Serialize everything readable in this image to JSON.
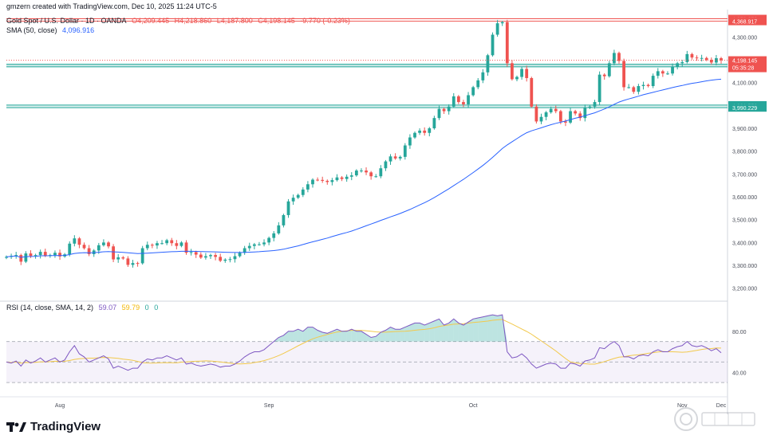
{
  "header": {
    "credit": "gmzern created with TradingView.com, Dec 10, 2025 11:24 UTC-5",
    "symbol": "Gold Spot / U.S. Dollar · 1D · OANDA",
    "open": "O4,209.445",
    "high": "H4,218.860",
    "low": "L4,187.800",
    "close": "C4,198.145",
    "change": "-9.770 (-0.23%)",
    "sma_label": "SMA (50, close)",
    "sma_value": "4,096.916"
  },
  "rsi_header": {
    "label": "RSI (14, close, SMA, 14, 2)",
    "rsi": "59.07",
    "rsi_sma": "59.79",
    "z1": "0",
    "z2": "0"
  },
  "currency": "USD",
  "branding": {
    "name": "TradingView"
  },
  "colors": {
    "up": "#26a69a",
    "down": "#ef5350",
    "sma": "#2962ff",
    "rsi": "#7e57c2",
    "rsi_sma": "#f2c94c"
  },
  "chart_data": [
    {
      "type": "candlestick",
      "title": "Gold Spot / U.S. Dollar · 1D · OANDA",
      "ylim": [
        3150,
        4420
      ],
      "y_ticks": [
        3200,
        3300,
        3400,
        3500,
        3600,
        3700,
        3800,
        3900,
        4000,
        4100,
        4200,
        4300
      ],
      "y_tick_labels": [
        "3,200.000",
        "3,300.000",
        "3,400.000",
        "3,500.000",
        "3,600.000",
        "3,700.000",
        "3,800.000",
        "3,900.000",
        "4,000.000",
        "4,100.000",
        "4,200.000",
        "4,300.000"
      ],
      "x_labels": [
        "Aug",
        "Sep",
        "Oct",
        "Nov",
        "Dec"
      ],
      "horizontal_levels": [
        {
          "value": 4379.672,
          "label": "4,379.672",
          "color": "#ef5350"
        },
        {
          "value": 4368.917,
          "label": "4,368.917",
          "color": "#ef5350"
        },
        {
          "value": 4180.688,
          "label": "4,180.688",
          "color": "#26a69a"
        },
        {
          "value": 4169.397,
          "label": "4,169.397",
          "color": "#26a69a"
        },
        {
          "value": 4001.552,
          "label": "4,001.552",
          "color": "#26a69a"
        },
        {
          "value": 3990.229,
          "label": "3,990.229",
          "color": "#26a69a"
        }
      ],
      "current_price": {
        "value": 4198.145,
        "label": "4,198.145",
        "countdown": "05:35:28"
      },
      "closes": [
        3337,
        3341,
        3345,
        3316,
        3352,
        3341,
        3345,
        3359,
        3342,
        3345,
        3355,
        3339,
        3348,
        3395,
        3418,
        3390,
        3375,
        3349,
        3365,
        3388,
        3400,
        3383,
        3326,
        3335,
        3330,
        3302,
        3310,
        3309,
        3375,
        3390,
        3387,
        3397,
        3397,
        3410,
        3397,
        3385,
        3400,
        3355,
        3358,
        3347,
        3334,
        3340,
        3345,
        3337,
        3320,
        3325,
        3327,
        3340,
        3355,
        3375,
        3385,
        3392,
        3392,
        3400,
        3420,
        3440,
        3475,
        3520,
        3580,
        3596,
        3608,
        3632,
        3655,
        3675,
        3674,
        3670,
        3665,
        3673,
        3685,
        3678,
        3688,
        3694,
        3715,
        3715,
        3707,
        3690,
        3690,
        3725,
        3755,
        3777,
        3768,
        3775,
        3825,
        3860,
        3880,
        3890,
        3880,
        3900,
        3945,
        3985,
        3975,
        3995,
        4040,
        4015,
        4005,
        4045,
        4080,
        4110,
        4145,
        4220,
        4310,
        4360,
        4365,
        4185,
        4115,
        4125,
        4160,
        4120,
        3995,
        3930,
        3950,
        3970,
        3985,
        3975,
        3930,
        3925,
        3975,
        3965,
        3945,
        3990,
        3995,
        4015,
        4135,
        4128,
        4185,
        4230,
        4195,
        4080,
        4080,
        4060,
        4085,
        4090,
        4085,
        4130,
        4150,
        4140,
        4140,
        4170,
        4185,
        4190,
        4225,
        4210,
        4208,
        4208,
        4200,
        4188,
        4207,
        4198
      ]
    },
    {
      "type": "line",
      "title": "RSI (14, close, SMA, 14, 2)",
      "ylim": [
        20,
        100
      ],
      "y_ticks": [
        40,
        60,
        80
      ],
      "y_tick_labels": [
        "40.00",
        "60.00",
        "80.00"
      ],
      "bands": {
        "upper": 70,
        "middle": 50,
        "lower": 30
      },
      "series": [
        {
          "name": "RSI",
          "values": [
            50,
            49,
            51,
            46,
            52,
            49,
            51,
            54,
            50,
            52,
            54,
            50,
            52,
            60,
            66,
            58,
            55,
            50,
            52,
            54,
            56,
            53,
            44,
            46,
            44,
            42,
            44,
            44,
            50,
            53,
            52,
            54,
            54,
            56,
            54,
            52,
            54,
            48,
            49,
            47,
            46,
            47,
            48,
            47,
            45,
            46,
            46,
            48,
            51,
            55,
            58,
            60,
            60,
            62,
            66,
            70,
            74,
            76,
            80,
            80,
            82,
            80,
            84,
            84,
            81,
            79,
            78,
            80,
            82,
            80,
            80,
            82,
            80,
            80,
            77,
            74,
            75,
            79,
            81,
            84,
            82,
            82,
            84,
            86,
            88,
            88,
            86,
            88,
            90,
            92,
            86,
            88,
            92,
            88,
            86,
            89,
            92,
            93,
            94,
            95,
            96,
            95,
            96,
            60,
            54,
            55,
            58,
            54,
            48,
            44,
            46,
            48,
            49,
            48,
            44,
            44,
            49,
            48,
            46,
            51,
            52,
            54,
            64,
            63,
            67,
            70,
            66,
            55,
            55,
            53,
            56,
            57,
            56,
            60,
            62,
            60,
            60,
            63,
            65,
            66,
            70,
            66,
            65,
            66,
            64,
            61,
            63,
            59
          ]
        }
      ]
    }
  ]
}
